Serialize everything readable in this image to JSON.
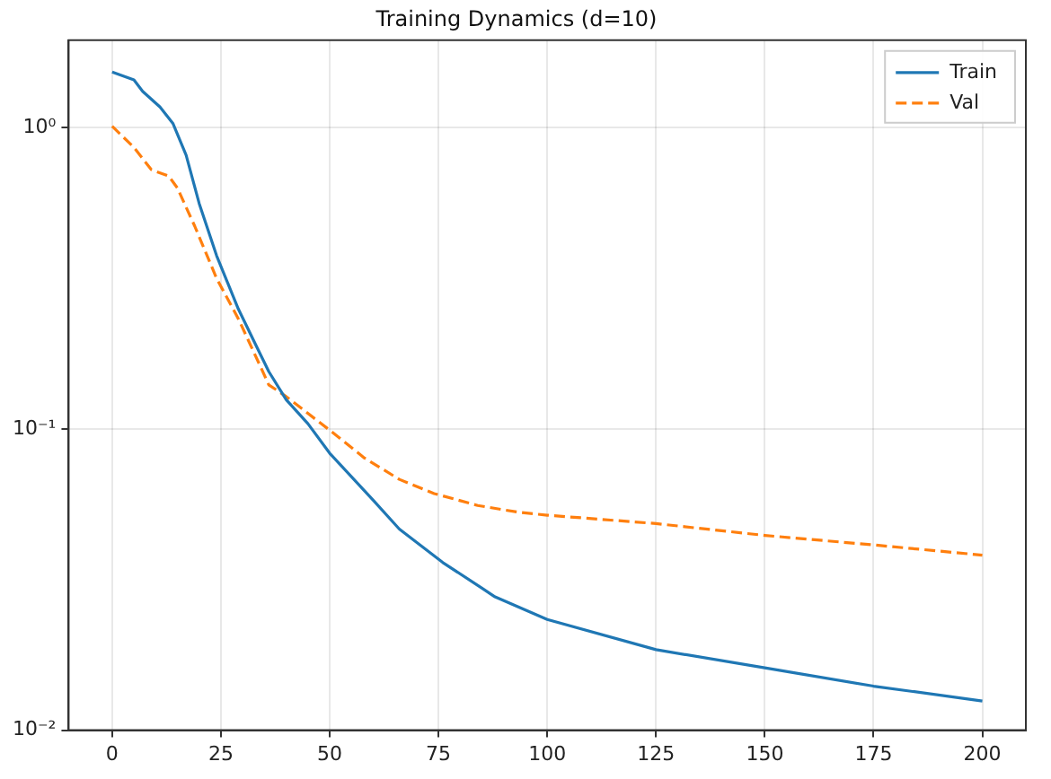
{
  "chart_data": {
    "type": "line",
    "title": "Training Dynamics (d=10)",
    "log": "y",
    "grid": true,
    "legend": "top right",
    "marker": "none",
    "xlim": [
      -10,
      210
    ],
    "xticks": [
      0,
      25,
      50,
      75,
      100,
      125,
      150,
      175,
      200
    ],
    "ylim": [
      0.01,
      1.95
    ],
    "yticks": [
      {
        "value": 0.01,
        "label": "10⁻²"
      },
      {
        "value": 0.1,
        "label": "10⁻¹"
      },
      {
        "value": 1,
        "label": "10⁰"
      }
    ],
    "series": [
      {
        "name": "Train",
        "color": "#1f77b4",
        "line_style": "solid",
        "x": [
          0,
          5,
          7,
          11,
          14,
          17,
          20,
          24,
          29,
          33,
          36,
          40,
          45,
          50,
          60,
          66,
          76,
          85,
          88,
          100,
          125,
          150,
          175,
          200
        ],
        "values": [
          1.53,
          1.44,
          1.32,
          1.17,
          1.03,
          0.81,
          0.56,
          0.376,
          0.25,
          0.19,
          0.155,
          0.125,
          0.104,
          0.083,
          0.058,
          0.0465,
          0.036,
          0.0296,
          0.0277,
          0.0233,
          0.0185,
          0.0161,
          0.014,
          0.0125
        ]
      },
      {
        "name": "Val",
        "color": "#ff7f0e",
        "line_style": "dashed",
        "x": [
          0,
          5,
          9,
          13,
          15,
          19,
          24,
          29,
          34,
          36,
          40,
          50,
          58,
          66,
          74,
          84,
          93,
          100,
          125,
          150,
          175,
          200
        ],
        "values": [
          1.01,
          0.86,
          0.725,
          0.69,
          0.63,
          0.47,
          0.316,
          0.232,
          0.162,
          0.14,
          0.128,
          0.099,
          0.08,
          0.068,
          0.061,
          0.0557,
          0.053,
          0.0517,
          0.0485,
          0.0443,
          0.0412,
          0.0381
        ]
      }
    ]
  }
}
